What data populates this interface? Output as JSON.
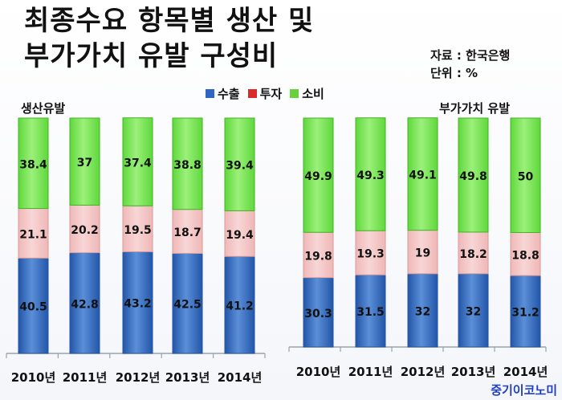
{
  "title_line1": "최종수요 항목별 생산 및",
  "title_line2": "부가가치 유발 구성비",
  "source_line1": "자료 : 한국은행",
  "source_line2": "단위 : %",
  "brand": "중기이코노미",
  "colors": {
    "export_top": "#5b8fd8",
    "export_bottom": "#2356a8",
    "invest_top": "#f8d6d6",
    "invest_bottom": "#efb7b7",
    "consume_top": "#9cf07a",
    "consume_bottom": "#5ed83c",
    "legend_export": "#2f66c5",
    "legend_invest": "#d92b2b",
    "legend_consume": "#6ad13e"
  },
  "chart_data": [
    {
      "type": "bar",
      "stacked": true,
      "title": "생산유발",
      "categories": [
        "2010년",
        "2011년",
        "2012년",
        "2013년",
        "2014년"
      ],
      "series": [
        {
          "name": "수출",
          "values": [
            40.5,
            42.8,
            43.2,
            42.5,
            41.2
          ]
        },
        {
          "name": "투자",
          "values": [
            21.1,
            20.2,
            19.5,
            18.7,
            19.4
          ]
        },
        {
          "name": "소비",
          "values": [
            38.4,
            37,
            37.4,
            38.8,
            39.4
          ]
        }
      ],
      "ylim": [
        0,
        100
      ]
    },
    {
      "type": "bar",
      "stacked": true,
      "title": "부가가치 유발",
      "categories": [
        "2010년",
        "2011년",
        "2012년",
        "2013년",
        "2014년"
      ],
      "series": [
        {
          "name": "수출",
          "values": [
            30.3,
            31.5,
            32,
            32,
            31.2
          ]
        },
        {
          "name": "투자",
          "values": [
            19.8,
            19.3,
            19,
            18.2,
            18.8
          ]
        },
        {
          "name": "소비",
          "values": [
            49.9,
            49.3,
            49.1,
            49.8,
            50
          ]
        }
      ],
      "ylim": [
        0,
        100
      ]
    }
  ]
}
